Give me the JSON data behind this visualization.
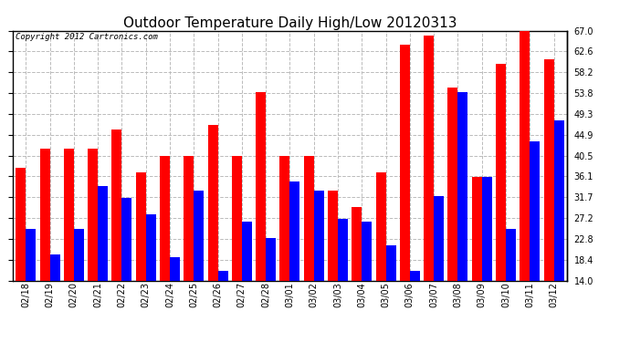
{
  "title": "Outdoor Temperature Daily High/Low 20120313",
  "copyright": "Copyright 2012 Cartronics.com",
  "categories": [
    "02/18",
    "02/19",
    "02/20",
    "02/21",
    "02/22",
    "02/23",
    "02/24",
    "02/25",
    "02/26",
    "02/27",
    "02/28",
    "03/01",
    "03/02",
    "03/03",
    "03/04",
    "03/05",
    "03/06",
    "03/07",
    "03/08",
    "03/09",
    "03/10",
    "03/11",
    "03/12"
  ],
  "highs": [
    38.0,
    42.0,
    42.0,
    42.0,
    46.0,
    37.0,
    40.5,
    40.5,
    47.0,
    40.5,
    54.0,
    40.5,
    40.5,
    33.0,
    29.5,
    37.0,
    64.0,
    66.0,
    55.0,
    36.0,
    60.0,
    67.0,
    61.0
  ],
  "lows": [
    25.0,
    19.5,
    25.0,
    34.0,
    31.5,
    28.0,
    19.0,
    33.0,
    16.0,
    26.5,
    23.0,
    35.0,
    33.0,
    27.0,
    26.5,
    21.5,
    16.0,
    32.0,
    54.0,
    36.0,
    25.0,
    43.5,
    48.0
  ],
  "high_color": "#ff0000",
  "low_color": "#0000ff",
  "bg_color": "#ffffff",
  "plot_bg_color": "#ffffff",
  "grid_color": "#bbbbbb",
  "ymin": 14.0,
  "ymax": 67.0,
  "yticks": [
    14.0,
    18.4,
    22.8,
    27.2,
    31.7,
    36.1,
    40.5,
    44.9,
    49.3,
    53.8,
    58.2,
    62.6,
    67.0
  ],
  "bar_width": 0.42,
  "title_fontsize": 11,
  "tick_fontsize": 7,
  "copyright_fontsize": 6.5
}
